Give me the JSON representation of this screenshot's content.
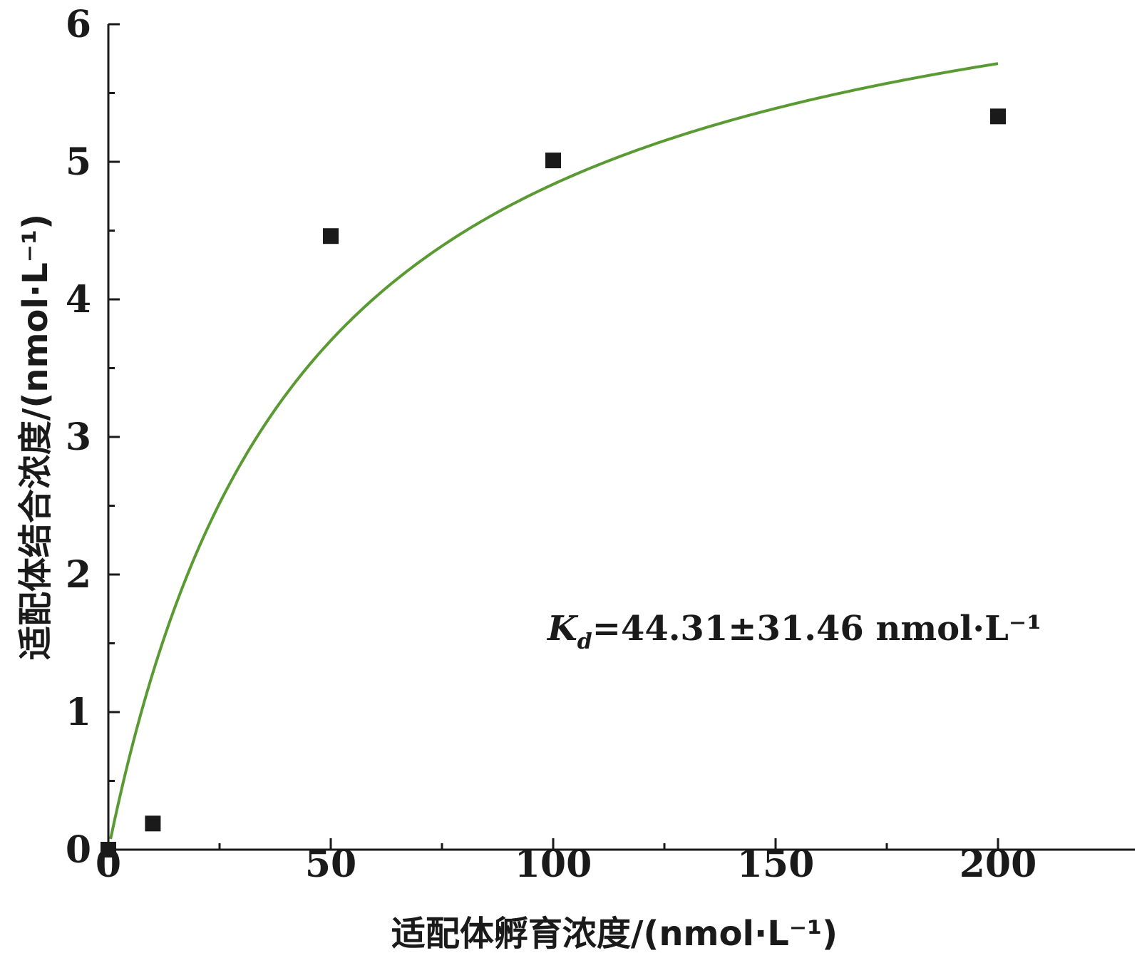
{
  "chart_data": {
    "type": "scatter",
    "xlabel": "适配体孵育浓度/(nmol·L⁻¹)",
    "ylabel": "适配体结合浓度/(nmol·L⁻¹)",
    "xlim": [
      0,
      225
    ],
    "ylim": [
      0,
      6
    ],
    "xticks": [
      0,
      50,
      100,
      150,
      200
    ],
    "yticks": [
      0,
      1,
      2,
      3,
      4,
      5,
      6
    ],
    "grid": false,
    "series": [
      {
        "kind": "points",
        "marker": "square",
        "color": "#1a1a1a",
        "x": [
          0,
          10,
          50,
          100,
          200
        ],
        "y": [
          0.0,
          0.19,
          4.46,
          5.01,
          5.33
        ]
      },
      {
        "kind": "fit-curve",
        "model": "one-site binding: y = Bmax·x/(Kd + x)",
        "Bmax": 6.98,
        "Kd": 44.31,
        "x_range": [
          0.5,
          200
        ],
        "color": "#5a9a32"
      }
    ],
    "annotation": {
      "symbol": "K",
      "subscript": "d",
      "text": "=44.31±31.46 nmol·L⁻¹"
    }
  }
}
